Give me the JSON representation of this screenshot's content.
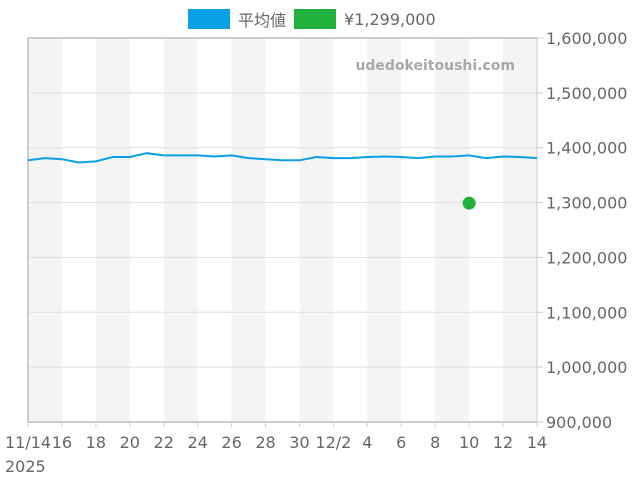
{
  "legend": {
    "items": [
      {
        "label": "平均値",
        "color": "#0aa0e6"
      },
      {
        "label": "¥1,299,000",
        "color": "#21b03b"
      }
    ]
  },
  "watermark": "udedokeitoushi.com",
  "chart_data": {
    "type": "line",
    "title": "",
    "xlabel": "",
    "ylabel": "",
    "x_start_label": "11/14",
    "year_label": "2025",
    "x_tick_labels": [
      "11/14",
      "16",
      "18",
      "20",
      "22",
      "24",
      "26",
      "28",
      "30",
      "12/2",
      "4",
      "6",
      "8",
      "10",
      "12",
      "14"
    ],
    "y_tick_labels": [
      "1,600,000",
      "1,500,000",
      "1,400,000",
      "1,300,000",
      "1,200,000",
      "1,100,000",
      "1,000,000",
      "900,000"
    ],
    "ylim": [
      900000,
      1600000
    ],
    "grid": true,
    "legend_position": "top",
    "x": [
      "11/14",
      "11/15",
      "11/16",
      "11/17",
      "11/18",
      "11/19",
      "11/20",
      "11/21",
      "11/22",
      "11/23",
      "11/24",
      "11/25",
      "11/26",
      "11/27",
      "11/28",
      "11/29",
      "11/30",
      "12/1",
      "12/2",
      "12/3",
      "12/4",
      "12/5",
      "12/6",
      "12/7",
      "12/8",
      "12/9",
      "12/10",
      "12/11",
      "12/12",
      "12/13",
      "12/14"
    ],
    "series": [
      {
        "name": "平均値",
        "color": "#0aa0e6",
        "values": [
          1377000,
          1381000,
          1379000,
          1373000,
          1375000,
          1383000,
          1383000,
          1390000,
          1386000,
          1386000,
          1386000,
          1384000,
          1386000,
          1381000,
          1379000,
          1377000,
          1377000,
          1383000,
          1381000,
          1381000,
          1383000,
          1384000,
          1383000,
          1381000,
          1384000,
          1384000,
          1386000,
          1381000,
          1384000,
          1383000,
          1381000
        ]
      },
      {
        "name": "¥1,299,000",
        "color": "#21b03b",
        "type": "scatter",
        "points": [
          {
            "x": "12/10",
            "y": 1299000
          }
        ]
      }
    ]
  }
}
